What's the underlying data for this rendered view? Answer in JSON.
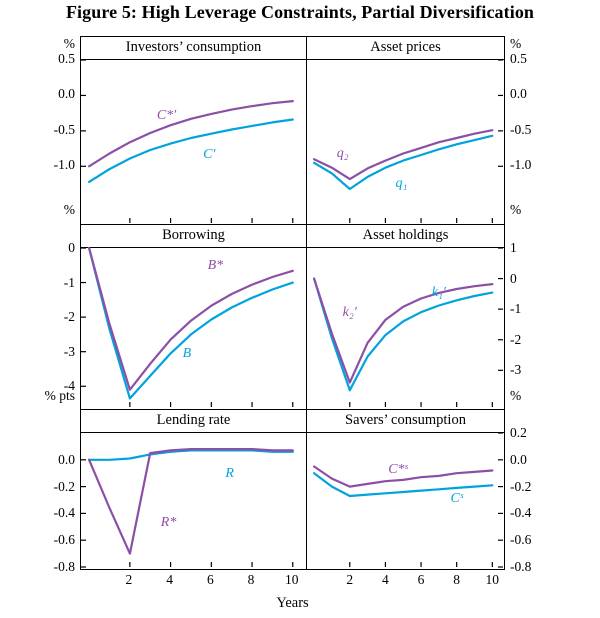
{
  "chart_data": {
    "type": "line",
    "title": "Figure 5: High Leverage Constraints, Partial Diversification",
    "xlabel": "Years",
    "x": [
      0,
      1,
      2,
      3,
      4,
      5,
      6,
      7,
      8,
      9,
      10
    ],
    "x_ticks": [
      2,
      4,
      6,
      8,
      10
    ],
    "xlim": [
      -0.4,
      10.6
    ],
    "grid": false,
    "legend": "none",
    "colors": {
      "purple": "#8c4fa6",
      "cyan": "#00a3dd",
      "frame": "#000000"
    },
    "panels": [
      {
        "title": "Investors’ consumption",
        "unit": "%",
        "axis_side": "left",
        "ylim": [
          -1.8,
          0.5
        ],
        "yticks": [
          {
            "label": "0.5",
            "value": 0.5
          },
          {
            "label": "0.0",
            "value": 0.0
          },
          {
            "label": "-0.5",
            "value": -0.5
          },
          {
            "label": "-1.0",
            "value": -1.0
          }
        ],
        "series": [
          {
            "label": "C′",
            "color": "cyan",
            "values": [
              -1.22,
              -1.04,
              -0.89,
              -0.77,
              -0.68,
              -0.6,
              -0.54,
              -0.48,
              -0.43,
              -0.38,
              -0.34
            ],
            "label_at": [
              5.9,
              -0.85
            ]
          },
          {
            "label": "C*′",
            "color": "purple",
            "values": [
              -1.0,
              -0.82,
              -0.66,
              -0.53,
              -0.42,
              -0.33,
              -0.26,
              -0.2,
              -0.15,
              -0.11,
              -0.08
            ],
            "label_at": [
              3.8,
              -0.3
            ]
          }
        ]
      },
      {
        "title": "Asset prices",
        "unit": "%",
        "axis_side": "right",
        "ylim": [
          -1.8,
          0.5
        ],
        "yticks": [
          {
            "label": "0.5",
            "value": 0.5
          },
          {
            "label": "0.0",
            "value": 0.0
          },
          {
            "label": "-0.5",
            "value": -0.5
          },
          {
            "label": "-1.0",
            "value": -1.0
          }
        ],
        "series": [
          {
            "label": "q₁",
            "color": "cyan",
            "values": [
              -0.95,
              -1.1,
              -1.32,
              -1.15,
              -1.02,
              -0.92,
              -0.84,
              -0.76,
              -0.69,
              -0.63,
              -0.57
            ],
            "label_at": [
              4.9,
              -1.26
            ]
          },
          {
            "label": "q₂",
            "color": "purple",
            "values": [
              -0.9,
              -1.02,
              -1.18,
              -1.03,
              -0.92,
              -0.82,
              -0.74,
              -0.66,
              -0.6,
              -0.54,
              -0.49
            ],
            "label_at": [
              1.6,
              -0.84
            ]
          }
        ]
      },
      {
        "title": "Borrowing",
        "unit": "%",
        "axis_side": "left",
        "ylim": [
          -4.6,
          0.0
        ],
        "yticks": [
          {
            "label": "0",
            "value": 0
          },
          {
            "label": "-1",
            "value": -1
          },
          {
            "label": "-2",
            "value": -2
          },
          {
            "label": "-3",
            "value": -3
          },
          {
            "label": "-4",
            "value": -4
          }
        ],
        "series": [
          {
            "label": "B",
            "color": "cyan",
            "values": [
              0.0,
              -2.35,
              -4.35,
              -3.7,
              -3.05,
              -2.5,
              -2.07,
              -1.72,
              -1.44,
              -1.2,
              -1.0
            ],
            "label_at": [
              4.8,
              -3.1
            ]
          },
          {
            "label": "B*",
            "color": "purple",
            "values": [
              0.0,
              -2.2,
              -4.1,
              -3.35,
              -2.65,
              -2.1,
              -1.67,
              -1.33,
              -1.06,
              -0.84,
              -0.66
            ],
            "label_at": [
              6.2,
              -0.55
            ]
          }
        ]
      },
      {
        "title": "Asset holdings",
        "unit": "%",
        "axis_side": "right",
        "ylim": [
          -4.2,
          1.0
        ],
        "yticks": [
          {
            "label": "1",
            "value": 1
          },
          {
            "label": "0",
            "value": 0
          },
          {
            "label": "-1",
            "value": -1
          },
          {
            "label": "-2",
            "value": -2
          },
          {
            "label": "-3",
            "value": -3
          }
        ],
        "series": [
          {
            "label": "k₁′",
            "color": "cyan",
            "values": [
              0.0,
              -1.95,
              -3.65,
              -2.55,
              -1.85,
              -1.4,
              -1.1,
              -0.88,
              -0.71,
              -0.57,
              -0.46
            ],
            "label_at": [
              7.0,
              -0.5
            ]
          },
          {
            "label": "k₂′",
            "color": "purple",
            "values": [
              0.0,
              -1.8,
              -3.4,
              -2.1,
              -1.35,
              -0.92,
              -0.65,
              -0.47,
              -0.34,
              -0.25,
              -0.18
            ],
            "label_at": [
              2.0,
              -1.15
            ]
          }
        ]
      },
      {
        "title": "Lending rate",
        "unit": "% pts",
        "axis_side": "left",
        "ylim": [
          -0.8,
          0.2
        ],
        "yticks": [
          {
            "label": "0.0",
            "value": 0.0
          },
          {
            "label": "-0.2",
            "value": -0.2
          },
          {
            "label": "-0.4",
            "value": -0.4
          },
          {
            "label": "-0.6",
            "value": -0.6
          },
          {
            "label": "-0.8",
            "value": -0.8
          }
        ],
        "series": [
          {
            "label": "R",
            "color": "cyan",
            "values": [
              0.0,
              0.0,
              0.01,
              0.04,
              0.06,
              0.07,
              0.07,
              0.07,
              0.07,
              0.06,
              0.06
            ],
            "label_at": [
              6.9,
              -0.11
            ]
          },
          {
            "label": "R*",
            "color": "purple",
            "values": [
              0.0,
              -0.36,
              -0.7,
              0.05,
              0.07,
              0.08,
              0.08,
              0.08,
              0.08,
              0.07,
              0.07
            ],
            "label_at": [
              3.9,
              -0.48
            ]
          }
        ]
      },
      {
        "title": "Savers’ consumption",
        "unit": "%",
        "axis_side": "right",
        "ylim": [
          -0.8,
          0.2
        ],
        "yticks": [
          {
            "label": "0.2",
            "value": 0.2
          },
          {
            "label": "0.0",
            "value": 0.0
          },
          {
            "label": "-0.2",
            "value": -0.2
          },
          {
            "label": "-0.4",
            "value": -0.4
          },
          {
            "label": "-0.6",
            "value": -0.6
          },
          {
            "label": "-0.8",
            "value": -0.8
          }
        ],
        "series": [
          {
            "label": "Cˢ",
            "color": "cyan",
            "values": [
              -0.1,
              -0.2,
              -0.27,
              -0.26,
              -0.25,
              -0.24,
              -0.23,
              -0.22,
              -0.21,
              -0.2,
              -0.19
            ],
            "label_at": [
              8.0,
              -0.3
            ]
          },
          {
            "label": "C*ˢ",
            "color": "purple",
            "values": [
              -0.05,
              -0.14,
              -0.2,
              -0.18,
              -0.16,
              -0.15,
              -0.13,
              -0.12,
              -0.1,
              -0.09,
              -0.08
            ],
            "label_at": [
              4.7,
              -0.08
            ]
          }
        ]
      }
    ]
  }
}
